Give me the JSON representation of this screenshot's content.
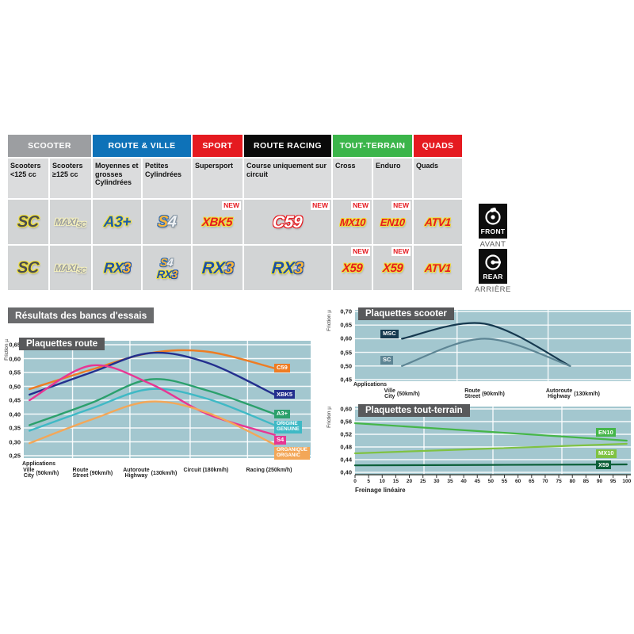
{
  "table": {
    "groups": [
      {
        "label": "SCOOTER",
        "color": "#9c9ea1",
        "span": 2
      },
      {
        "label": "ROUTE & VILLE",
        "color": "#0e72b8",
        "span": 2
      },
      {
        "label": "SPORT",
        "color": "#e51a20",
        "span": 1
      },
      {
        "label": "ROUTE RACING",
        "color": "#0a0a0a",
        "span": 1
      },
      {
        "label": "TOUT-TERRAIN",
        "color": "#3bb54a",
        "span": 2
      },
      {
        "label": "QUADS",
        "color": "#e51a20",
        "span": 1
      }
    ],
    "columns": [
      "Scooters <125 cc",
      "Scooters ≥125 cc",
      "Moyennes et grosses Cylindrées",
      "Petites Cylindrées",
      "Supersport",
      "Course uniquement sur circuit",
      "Cross",
      "Enduro",
      "Quads"
    ],
    "rows": [
      {
        "id": "front",
        "cells": [
          {
            "name": "sc",
            "badge": null,
            "logos": [
              {
                "size": 20,
                "outline": "#f0e13a",
                "parts": [
                  {
                    "t": "SC",
                    "c": "#4a4c4e"
                  }
                ]
              }
            ]
          },
          {
            "name": "maxi-sc",
            "badge": null,
            "logos": [
              {
                "size": 12,
                "outline": "#f4f0bc",
                "parts": [
                  {
                    "t": "MAXI",
                    "c": "#9b9da0"
                  },
                  {
                    "t": "SC",
                    "c": "#9b9da0",
                    "s": 9,
                    "sub": true
                  }
                ]
              }
            ]
          },
          {
            "name": "a3plus",
            "badge": null,
            "logos": [
              {
                "size": 19,
                "outline": "#f0e13a",
                "parts": [
                  {
                    "t": "A3+",
                    "c": "#1c5cab"
                  }
                ]
              }
            ]
          },
          {
            "name": "s4",
            "badge": null,
            "logos": [
              {
                "size": 20,
                "parts": [
                  {
                    "t": "S",
                    "c": "#f9b53c",
                    "o": "#2e6ab0"
                  },
                  {
                    "t": "4",
                    "c": "#eef1f4",
                    "o": "#8494a3"
                  }
                ]
              }
            ]
          },
          {
            "name": "xbk5",
            "badge": "NEW",
            "logos": [
              {
                "size": 15,
                "outline": "#f0e13a",
                "parts": [
                  {
                    "t": "XBK5",
                    "c": "#e51a20"
                  }
                ]
              }
            ]
          },
          {
            "name": "c59",
            "badge": "NEW",
            "logos": [
              {
                "size": 21,
                "outline": "#e51a20",
                "parts": [
                  {
                    "t": "C59",
                    "c": "#ffffff"
                  }
                ]
              }
            ]
          },
          {
            "name": "mx10",
            "badge": "NEW",
            "logos": [
              {
                "size": 13,
                "outline": "#f0e13a",
                "parts": [
                  {
                    "t": "MX10",
                    "c": "#e51a20"
                  }
                ]
              }
            ]
          },
          {
            "name": "en10",
            "badge": "NEW",
            "logos": [
              {
                "size": 13,
                "outline": "#f0e13a",
                "parts": [
                  {
                    "t": "EN10",
                    "c": "#e51a20"
                  }
                ]
              }
            ]
          },
          {
            "name": "atv1",
            "badge": null,
            "logos": [
              {
                "size": 14,
                "outline": "#f0e13a",
                "parts": [
                  {
                    "t": "ATV1",
                    "c": "#e51a20"
                  }
                ]
              }
            ]
          }
        ]
      },
      {
        "id": "rear",
        "cells": [
          {
            "name": "sc",
            "badge": null,
            "logos": [
              {
                "size": 20,
                "outline": "#f0e13a",
                "parts": [
                  {
                    "t": "SC",
                    "c": "#4a4c4e"
                  }
                ]
              }
            ]
          },
          {
            "name": "maxi-sc",
            "badge": null,
            "logos": [
              {
                "size": 12,
                "outline": "#f4f0bc",
                "parts": [
                  {
                    "t": "MAXI",
                    "c": "#9b9da0"
                  },
                  {
                    "t": "SC",
                    "c": "#9b9da0",
                    "s": 9,
                    "sub": true
                  }
                ]
              }
            ]
          },
          {
            "name": "rx3",
            "badge": null,
            "logos": [
              {
                "size": 18,
                "parts": [
                  {
                    "t": "RX",
                    "c": "#1b4fa8",
                    "o": "#f0e13a"
                  },
                  {
                    "t": "3",
                    "c": "#f9b53c",
                    "o": "#1b4fa8"
                  }
                ]
              }
            ]
          },
          {
            "name": "s4-rx3",
            "badge": null,
            "logos": [
              {
                "size": 14,
                "parts": [
                  {
                    "t": "S",
                    "c": "#f9b53c",
                    "o": "#2e6ab0"
                  },
                  {
                    "t": "4",
                    "c": "#eef1f4",
                    "o": "#8494a3"
                  }
                ]
              },
              {
                "size": 14,
                "parts": [
                  {
                    "t": "RX",
                    "c": "#1b4fa8",
                    "o": "#f0e13a"
                  },
                  {
                    "t": "3",
                    "c": "#f9b53c",
                    "o": "#1b4fa8"
                  }
                ]
              }
            ]
          },
          {
            "name": "rx3",
            "badge": null,
            "logos": [
              {
                "size": 21,
                "parts": [
                  {
                    "t": "RX",
                    "c": "#1b4fa8",
                    "o": "#f0e13a"
                  },
                  {
                    "t": "3",
                    "c": "#f9b53c",
                    "o": "#1b4fa8"
                  }
                ]
              }
            ]
          },
          {
            "name": "rx3",
            "badge": null,
            "logos": [
              {
                "size": 21,
                "parts": [
                  {
                    "t": "RX",
                    "c": "#1b4fa8",
                    "o": "#f0e13a"
                  },
                  {
                    "t": "3",
                    "c": "#f9b53c",
                    "o": "#1b4fa8"
                  }
                ]
              }
            ]
          },
          {
            "name": "x59",
            "badge": "NEW",
            "logos": [
              {
                "size": 15,
                "outline": "#f0e13a",
                "parts": [
                  {
                    "t": "X59",
                    "c": "#e51a20"
                  }
                ]
              }
            ]
          },
          {
            "name": "x59",
            "badge": "NEW",
            "logos": [
              {
                "size": 15,
                "outline": "#f0e13a",
                "parts": [
                  {
                    "t": "X59",
                    "c": "#e51a20"
                  }
                ]
              }
            ]
          },
          {
            "name": "atv1",
            "badge": null,
            "logos": [
              {
                "size": 14,
                "outline": "#f0e13a",
                "parts": [
                  {
                    "t": "ATV1",
                    "c": "#e51a20"
                  }
                ]
              }
            ]
          }
        ]
      }
    ]
  },
  "side_labels": {
    "front": {
      "box": "FRONT",
      "below": "AVANT"
    },
    "rear": {
      "box": "REAR",
      "below": "ARRIÈRE"
    }
  },
  "section_title": "Résultats des bancs d'essais",
  "chart_data": [
    {
      "id": "route",
      "type": "line",
      "title": "Plaquettes route",
      "ylabel": "Friction µ",
      "xlabel": "Applications",
      "ylim": [
        0.25,
        0.65
      ],
      "yticks": [
        "0,65",
        "0,60",
        "0,55",
        "0,50",
        "0,45",
        "0,40",
        "0,35",
        "0,30",
        "0,25"
      ],
      "categories": [
        {
          "fr": "Ville",
          "en": "City",
          "speed": "(50km/h)"
        },
        {
          "fr": "Route",
          "en": "Street",
          "speed": "(90km/h)"
        },
        {
          "fr": "Autoroute",
          "en": "Highway",
          "speed": "(130km/h)"
        },
        {
          "label": "Circuit (180km/h)"
        },
        {
          "label": "Racing (250km/h)"
        }
      ],
      "legend_position": "right",
      "grid": true,
      "series": [
        {
          "name": "C59",
          "color": "#ee7c23",
          "label_lines": [
            "C59"
          ],
          "values": [
            0.49,
            0.56,
            0.62,
            0.625,
            0.565
          ]
        },
        {
          "name": "XBK5",
          "color": "#232f8e",
          "label_lines": [
            "XBK5"
          ],
          "values": [
            0.47,
            0.55,
            0.62,
            0.585,
            0.47
          ]
        },
        {
          "name": "A3+",
          "color": "#2ba06c",
          "label_lines": [
            "A3+"
          ],
          "values": [
            0.36,
            0.44,
            0.525,
            0.485,
            0.4
          ]
        },
        {
          "name": "ORIGINE GENUINE",
          "color": "#3fb9c5",
          "label_lines": [
            "ORIGINE",
            "GENUINE"
          ],
          "values": [
            0.34,
            0.42,
            0.49,
            0.455,
            0.36
          ]
        },
        {
          "name": "S4",
          "color": "#e73693",
          "label_lines": [
            "S4"
          ],
          "values": [
            0.45,
            0.575,
            0.51,
            0.4,
            0.325
          ]
        },
        {
          "name": "ORGANIQUE ORGANIC",
          "color": "#f3a758",
          "label_lines": [
            "ORGANIQUE",
            "ORGANIC"
          ],
          "values": [
            0.295,
            0.38,
            0.445,
            0.405,
            0.29
          ]
        }
      ]
    },
    {
      "id": "scooter",
      "type": "line",
      "title": "Plaquettes scooter",
      "ylabel": "Friction µ",
      "xlabel": "Applications",
      "ylim": [
        0.45,
        0.7
      ],
      "yticks": [
        "0,70",
        "0,65",
        "0,60",
        "0,55",
        "0,50",
        "0,45"
      ],
      "categories": [
        {
          "fr": "Ville",
          "en": "City",
          "speed": "(50km/h)"
        },
        {
          "fr": "Route",
          "en": "Street",
          "speed": "(90km/h)"
        },
        {
          "fr": "Autoroute",
          "en": "Highway",
          "speed": "(130km/h)"
        }
      ],
      "legend_position": "left",
      "grid": true,
      "series": [
        {
          "name": "MSC",
          "color": "#16394f",
          "label_lines": [
            "MSC"
          ],
          "label_v": 0.617,
          "values": [
            0.6,
            0.655,
            0.5
          ]
        },
        {
          "name": "SC",
          "color": "#5d8594",
          "label_lines": [
            "SC"
          ],
          "label_v": 0.52,
          "values": [
            0.5,
            0.6,
            0.5
          ]
        }
      ]
    },
    {
      "id": "terrain",
      "type": "line",
      "title": "Plaquettes tout-terrain",
      "ylabel": "Friction µ",
      "xlabel": "Freinage linéaire",
      "ylim": [
        0.4,
        0.6
      ],
      "yticks": [
        "0,60",
        "0,56",
        "0,52",
        "0,48",
        "0,44",
        "0,40"
      ],
      "xlim": [
        0,
        100
      ],
      "xticks": [
        "0",
        "5",
        "10",
        "15",
        "20",
        "25",
        "30",
        "35",
        "40",
        "45",
        "50",
        "55",
        "60",
        "65",
        "70",
        "75",
        "80",
        "85",
        "90",
        "95",
        "100"
      ],
      "legend_position": "right",
      "grid": true,
      "series": [
        {
          "name": "EN10",
          "color": "#45b649",
          "label_lines": [
            "EN10"
          ],
          "label_v": 0.525,
          "points": [
            [
              0,
              0.555
            ],
            [
              100,
              0.5
            ]
          ]
        },
        {
          "name": "MX10",
          "color": "#7fc242",
          "label_lines": [
            "MX10"
          ],
          "label_v": 0.458,
          "points": [
            [
              0,
              0.46
            ],
            [
              100,
              0.49
            ]
          ]
        },
        {
          "name": "X59",
          "color": "#0b5f38",
          "label_lines": [
            "X59"
          ],
          "label_v": 0.422,
          "points": [
            [
              0,
              0.422
            ],
            [
              100,
              0.425
            ]
          ]
        }
      ]
    }
  ]
}
